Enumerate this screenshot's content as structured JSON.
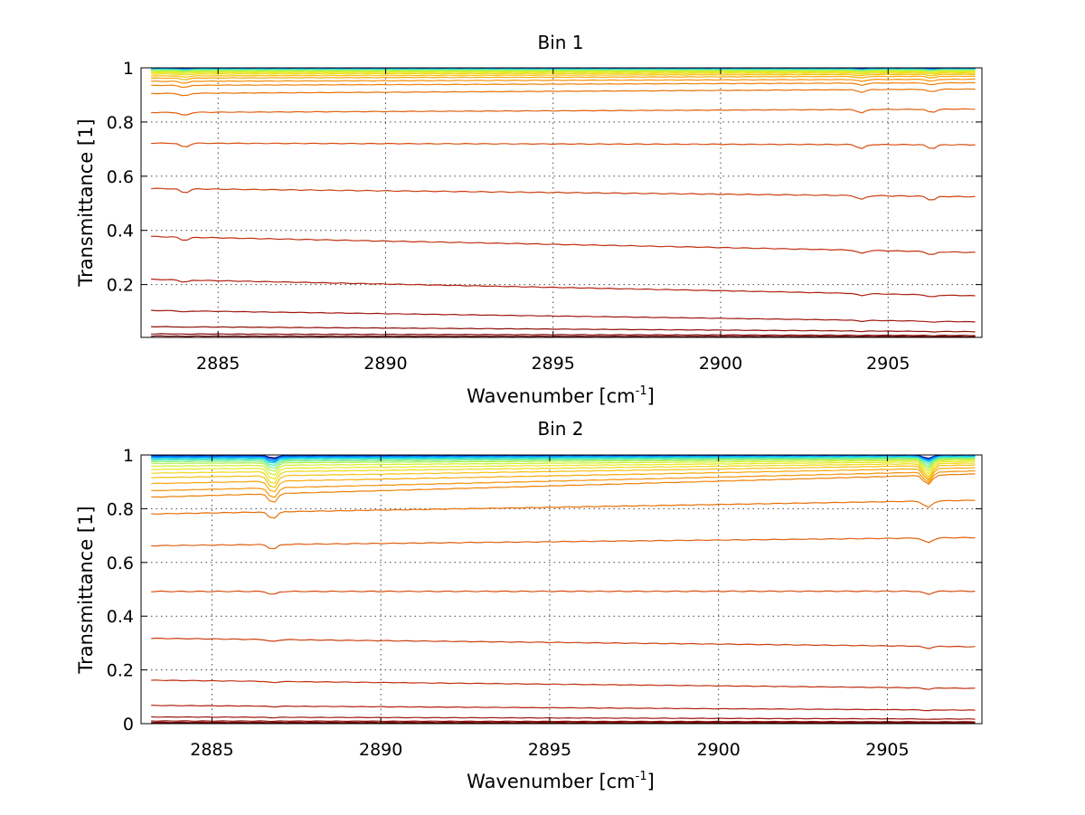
{
  "chart_data": [
    {
      "type": "line",
      "title": "Bin 1",
      "xlabel": "Wavenumber [cm",
      "xlabel_sup": "-1",
      "xlabel_end": "]",
      "ylabel": "Transmittance [1]",
      "xlim": [
        2882.7,
        2907.8
      ],
      "ylim": [
        0.005,
        1.0
      ],
      "xticks": [
        2885,
        2890,
        2895,
        2900,
        2905
      ],
      "xtick_labels": [
        "2885",
        "2890",
        "2895",
        "2900",
        "2905"
      ],
      "yticks": [
        0.2,
        0.4,
        0.6,
        0.8,
        1
      ],
      "ytick_labels": [
        "0.2",
        "0.4",
        "0.6",
        "0.8",
        "1"
      ],
      "grid": true,
      "dip_positions": [
        2884.0,
        2904.2,
        2906.3
      ],
      "series": [
        {
          "start": 0.998,
          "end": 0.998,
          "dip": 0.001,
          "color": "#00007a"
        },
        {
          "start": 0.997,
          "end": 0.997,
          "dip": 0.001,
          "color": "#0033cc"
        },
        {
          "start": 0.996,
          "end": 0.996,
          "dip": 0.002,
          "color": "#0080ff"
        },
        {
          "start": 0.995,
          "end": 0.995,
          "dip": 0.002,
          "color": "#00b0ff"
        },
        {
          "start": 0.994,
          "end": 0.994,
          "dip": 0.002,
          "color": "#20d8e0"
        },
        {
          "start": 0.993,
          "end": 0.993,
          "dip": 0.002,
          "color": "#50e8b0"
        },
        {
          "start": 0.991,
          "end": 0.992,
          "dip": 0.003,
          "color": "#80f080"
        },
        {
          "start": 0.989,
          "end": 0.99,
          "dip": 0.003,
          "color": "#b0f050"
        },
        {
          "start": 0.986,
          "end": 0.988,
          "dip": 0.003,
          "color": "#d0f030"
        },
        {
          "start": 0.982,
          "end": 0.985,
          "dip": 0.004,
          "color": "#e8e820"
        },
        {
          "start": 0.977,
          "end": 0.981,
          "dip": 0.004,
          "color": "#f0d818"
        },
        {
          "start": 0.97,
          "end": 0.976,
          "dip": 0.005,
          "color": "#f5c010"
        },
        {
          "start": 0.962,
          "end": 0.969,
          "dip": 0.006,
          "color": "#f8a808"
        },
        {
          "start": 0.95,
          "end": 0.958,
          "dip": 0.007,
          "color": "#f59008"
        },
        {
          "start": 0.935,
          "end": 0.945,
          "dip": 0.008,
          "color": "#ef8008"
        },
        {
          "start": 0.905,
          "end": 0.922,
          "dip": 0.01,
          "color": "#e87008"
        },
        {
          "start": 0.835,
          "end": 0.848,
          "dip": 0.012,
          "color": "#e06010"
        },
        {
          "start": 0.722,
          "end": 0.716,
          "dip": 0.015,
          "color": "#d85010"
        },
        {
          "start": 0.555,
          "end": 0.524,
          "dip": 0.015,
          "color": "#cc4010"
        },
        {
          "start": 0.378,
          "end": 0.318,
          "dip": 0.012,
          "color": "#c03010"
        },
        {
          "start": 0.22,
          "end": 0.158,
          "dip": 0.008,
          "color": "#b02010"
        },
        {
          "start": 0.105,
          "end": 0.062,
          "dip": 0.004,
          "color": "#a01810"
        },
        {
          "start": 0.045,
          "end": 0.026,
          "dip": 0.002,
          "color": "#901008"
        },
        {
          "start": 0.018,
          "end": 0.012,
          "dip": 0.001,
          "color": "#800808"
        },
        {
          "start": 0.01,
          "end": 0.008,
          "dip": 0.001,
          "color": "#700000"
        }
      ]
    },
    {
      "type": "line",
      "title": "Bin 2",
      "xlabel": "Wavenumber [cm",
      "xlabel_sup": "-1",
      "xlabel_end": "]",
      "ylabel": "Transmittance [1]",
      "xlim": [
        2882.9,
        2907.8
      ],
      "ylim": [
        0.0,
        1.0
      ],
      "xticks": [
        2885,
        2890,
        2895,
        2900,
        2905
      ],
      "xtick_labels": [
        "2885",
        "2890",
        "2895",
        "2900",
        "2905"
      ],
      "yticks": [
        0,
        0.2,
        0.4,
        0.6,
        0.8,
        1
      ],
      "ytick_labels": [
        "0",
        "0.2",
        "0.4",
        "0.6",
        "0.8",
        "1"
      ],
      "grid": true,
      "dip_positions": [
        2886.8,
        2906.2
      ],
      "series": [
        {
          "start": 0.998,
          "end": 0.998,
          "dip": 0.01,
          "color": "#00007a"
        },
        {
          "start": 0.996,
          "end": 0.997,
          "dip": 0.012,
          "color": "#0033cc"
        },
        {
          "start": 0.993,
          "end": 0.996,
          "dip": 0.015,
          "color": "#0080ff"
        },
        {
          "start": 0.99,
          "end": 0.995,
          "dip": 0.018,
          "color": "#00b0ff"
        },
        {
          "start": 0.986,
          "end": 0.993,
          "dip": 0.02,
          "color": "#20d8e0"
        },
        {
          "start": 0.981,
          "end": 0.991,
          "dip": 0.025,
          "color": "#50e8b0"
        },
        {
          "start": 0.975,
          "end": 0.988,
          "dip": 0.03,
          "color": "#80f080"
        },
        {
          "start": 0.968,
          "end": 0.985,
          "dip": 0.035,
          "color": "#b0f050"
        },
        {
          "start": 0.958,
          "end": 0.981,
          "dip": 0.04,
          "color": "#d0f030"
        },
        {
          "start": 0.946,
          "end": 0.976,
          "dip": 0.045,
          "color": "#e8e820"
        },
        {
          "start": 0.932,
          "end": 0.97,
          "dip": 0.05,
          "color": "#f0d818"
        },
        {
          "start": 0.915,
          "end": 0.963,
          "dip": 0.05,
          "color": "#f5c010"
        },
        {
          "start": 0.893,
          "end": 0.953,
          "dip": 0.045,
          "color": "#f8a808"
        },
        {
          "start": 0.866,
          "end": 0.941,
          "dip": 0.04,
          "color": "#f59008"
        },
        {
          "start": 0.842,
          "end": 0.93,
          "dip": 0.035,
          "color": "#ef8008"
        },
        {
          "start": 0.78,
          "end": 0.832,
          "dip": 0.025,
          "color": "#e87008"
        },
        {
          "start": 0.662,
          "end": 0.693,
          "dip": 0.018,
          "color": "#e06010"
        },
        {
          "start": 0.492,
          "end": 0.493,
          "dip": 0.012,
          "color": "#d85010"
        },
        {
          "start": 0.318,
          "end": 0.286,
          "dip": 0.008,
          "color": "#cc4010"
        },
        {
          "start": 0.162,
          "end": 0.131,
          "dip": 0.005,
          "color": "#c03010"
        },
        {
          "start": 0.068,
          "end": 0.05,
          "dip": 0.003,
          "color": "#b02010"
        },
        {
          "start": 0.025,
          "end": 0.017,
          "dip": 0.002,
          "color": "#a01810"
        },
        {
          "start": 0.01,
          "end": 0.007,
          "dip": 0.001,
          "color": "#901008"
        },
        {
          "start": 0.005,
          "end": 0.004,
          "dip": 0.001,
          "color": "#800808"
        },
        {
          "start": 0.003,
          "end": 0.002,
          "dip": 0.001,
          "color": "#700000"
        }
      ]
    }
  ]
}
